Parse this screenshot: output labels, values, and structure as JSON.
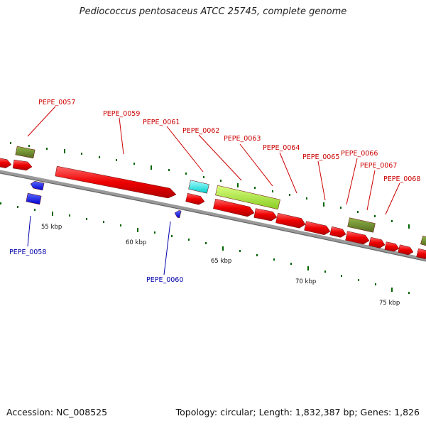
{
  "title": "Pediococcus pentosaceus ATCC 25745, complete genome",
  "footer": {
    "accession": "Accession: NC_008525",
    "summary": "Topology: circular; Length: 1,832,387 bp; Genes: 1,826"
  },
  "colors": {
    "forward_gene": "#ff0000",
    "reverse_gene": "#0000ff",
    "olive_gene": "#6b8e23",
    "cyan_gene": "#00ffff",
    "lime_gene": "#adff2f",
    "backbone": "#808080",
    "tick": "#006400",
    "forward_label": "#cc0000",
    "reverse_label": "#0000aa"
  },
  "scale_labels": [
    "55 kbp",
    "60 kbp",
    "65 kbp",
    "70 kbp",
    "75 kbp"
  ],
  "gene_labels": [
    {
      "name": "PEPE_0057",
      "strand": "forward"
    },
    {
      "name": "PEPE_0058",
      "strand": "reverse"
    },
    {
      "name": "PEPE_0059",
      "strand": "forward"
    },
    {
      "name": "PEPE_0060",
      "strand": "reverse"
    },
    {
      "name": "PEPE_0061",
      "strand": "forward"
    },
    {
      "name": "PEPE_0062",
      "strand": "forward"
    },
    {
      "name": "PEPE_0063",
      "strand": "forward"
    },
    {
      "name": "PEPE_0064",
      "strand": "forward"
    },
    {
      "name": "PEPE_0065",
      "strand": "forward"
    },
    {
      "name": "PEPE_0066",
      "strand": "forward"
    },
    {
      "name": "PEPE_0067",
      "strand": "forward"
    },
    {
      "name": "PEPE_0068",
      "strand": "forward"
    }
  ]
}
